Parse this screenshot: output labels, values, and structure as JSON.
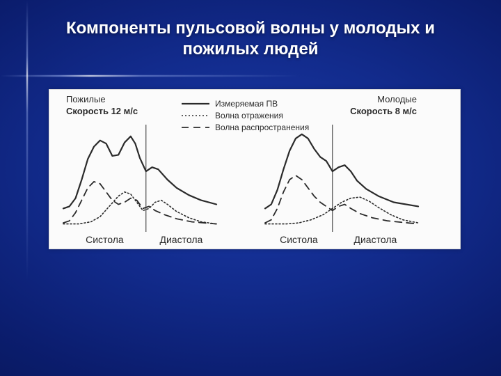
{
  "slide": {
    "title": "Компоненты пульсовой волны у молодых и пожилых людей",
    "title_fontsize": 24,
    "title_color": "#ffffff",
    "background_gradient": [
      "#1a3aa8",
      "#122b8c",
      "#0b1d6e",
      "#05134d"
    ]
  },
  "figure": {
    "background_color": "#fbfbfb",
    "stroke_color": "#2a2a2a",
    "label_fontsize": 13,
    "legend_fontsize": 12,
    "phase_fontsize": 14,
    "legend": {
      "measured": "Измеряемая ПВ",
      "reflection": "Волна отражения",
      "propagation": "Волна распространения",
      "line_styles": {
        "measured": "solid",
        "reflection": "dotted_dense",
        "propagation": "long_dash"
      }
    },
    "panels": [
      {
        "id": "elderly",
        "group_label": "Пожилые",
        "speed_label": "Скорость 12 м/с",
        "systole_label": "Систола",
        "diastole_label": "Диастола",
        "x_range": [
          0,
          100
        ],
        "y_range": [
          0,
          100
        ],
        "divider_x": 54,
        "curves": {
          "measured": [
            [
              0,
              20
            ],
            [
              4,
              22
            ],
            [
              8,
              30
            ],
            [
              12,
              48
            ],
            [
              16,
              68
            ],
            [
              20,
              80
            ],
            [
              24,
              86
            ],
            [
              28,
              83
            ],
            [
              32,
              71
            ],
            [
              36,
              72
            ],
            [
              40,
              84
            ],
            [
              44,
              90
            ],
            [
              47,
              83
            ],
            [
              50,
              69
            ],
            [
              54,
              56
            ],
            [
              58,
              60
            ],
            [
              62,
              58
            ],
            [
              68,
              48
            ],
            [
              74,
              40
            ],
            [
              82,
              33
            ],
            [
              90,
              28
            ],
            [
              100,
              24
            ]
          ],
          "reflection": [
            [
              0,
              5
            ],
            [
              10,
              5
            ],
            [
              18,
              7
            ],
            [
              24,
              12
            ],
            [
              30,
              22
            ],
            [
              36,
              32
            ],
            [
              40,
              36
            ],
            [
              44,
              34
            ],
            [
              48,
              26
            ],
            [
              52,
              18
            ],
            [
              56,
              20
            ],
            [
              60,
              26
            ],
            [
              64,
              28
            ],
            [
              68,
              24
            ],
            [
              74,
              17
            ],
            [
              82,
              11
            ],
            [
              90,
              7
            ],
            [
              100,
              5
            ]
          ],
          "propagation": [
            [
              0,
              6
            ],
            [
              4,
              8
            ],
            [
              8,
              16
            ],
            [
              12,
              28
            ],
            [
              16,
              40
            ],
            [
              20,
              46
            ],
            [
              24,
              44
            ],
            [
              28,
              36
            ],
            [
              32,
              28
            ],
            [
              36,
              24
            ],
            [
              40,
              26
            ],
            [
              44,
              30
            ],
            [
              48,
              28
            ],
            [
              52,
              20
            ],
            [
              56,
              22
            ],
            [
              60,
              18
            ],
            [
              66,
              14
            ],
            [
              74,
              10
            ],
            [
              84,
              7
            ],
            [
              100,
              5
            ]
          ]
        }
      },
      {
        "id": "young",
        "group_label": "Молодые",
        "speed_label": "Скорость 8 м/с",
        "systole_label": "Систола",
        "diastole_label": "Диастола",
        "x_range": [
          0,
          100
        ],
        "y_range": [
          0,
          100
        ],
        "divider_x": 44,
        "curves": {
          "measured": [
            [
              0,
              20
            ],
            [
              4,
              24
            ],
            [
              8,
              38
            ],
            [
              12,
              58
            ],
            [
              16,
              76
            ],
            [
              20,
              88
            ],
            [
              24,
              92
            ],
            [
              28,
              88
            ],
            [
              32,
              78
            ],
            [
              36,
              70
            ],
            [
              40,
              66
            ],
            [
              44,
              56
            ],
            [
              48,
              60
            ],
            [
              52,
              62
            ],
            [
              56,
              56
            ],
            [
              60,
              47
            ],
            [
              66,
              39
            ],
            [
              74,
              32
            ],
            [
              84,
              26
            ],
            [
              100,
              22
            ]
          ],
          "reflection": [
            [
              0,
              5
            ],
            [
              14,
              5
            ],
            [
              22,
              6
            ],
            [
              30,
              9
            ],
            [
              38,
              14
            ],
            [
              44,
              20
            ],
            [
              50,
              26
            ],
            [
              56,
              30
            ],
            [
              62,
              31
            ],
            [
              68,
              27
            ],
            [
              74,
              21
            ],
            [
              82,
              14
            ],
            [
              90,
              9
            ],
            [
              100,
              6
            ]
          ],
          "propagation": [
            [
              0,
              6
            ],
            [
              4,
              9
            ],
            [
              8,
              20
            ],
            [
              12,
              36
            ],
            [
              16,
              48
            ],
            [
              20,
              52
            ],
            [
              24,
              48
            ],
            [
              28,
              40
            ],
            [
              32,
              32
            ],
            [
              36,
              26
            ],
            [
              40,
              22
            ],
            [
              44,
              18
            ],
            [
              48,
              22
            ],
            [
              52,
              24
            ],
            [
              56,
              20
            ],
            [
              62,
              15
            ],
            [
              70,
              11
            ],
            [
              80,
              8
            ],
            [
              100,
              5
            ]
          ]
        }
      }
    ],
    "line_widths": {
      "measured": 2.2,
      "reflection": 1.6,
      "propagation": 1.8
    }
  }
}
